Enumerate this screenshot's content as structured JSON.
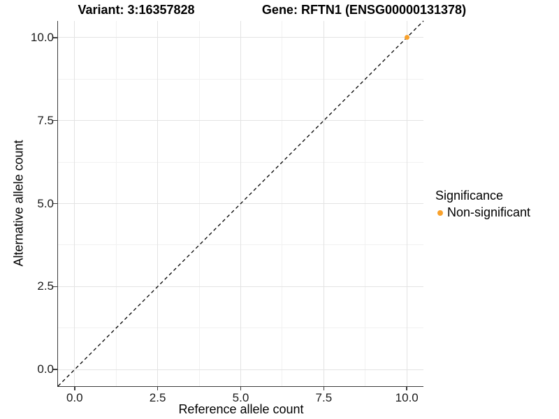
{
  "figure": {
    "title_left": "Variant: 3:16357828",
    "title_right": "Gene: RFTN1 (ENSG00000131378)"
  },
  "axes": {
    "x_title": "Reference allele count",
    "y_title": "Alternative allele count"
  },
  "legend": {
    "title": "Significance",
    "items": [
      {
        "label": "Non-significant",
        "color": "#F9A12B"
      }
    ]
  },
  "chart_data": {
    "type": "scatter",
    "title": "Variant: 3:16357828   Gene: RFTN1 (ENSG00000131378)",
    "xlabel": "Reference allele count",
    "ylabel": "Alternative allele count",
    "xlim": [
      -0.5,
      10.5
    ],
    "ylim": [
      -0.5,
      10.5
    ],
    "xticks": [
      0.0,
      2.5,
      5.0,
      7.5,
      10.0
    ],
    "xtick_labels": [
      "0.0",
      "2.5",
      "5.0",
      "7.5",
      "10.0"
    ],
    "yticks": [
      0.0,
      2.5,
      5.0,
      7.5,
      10.0
    ],
    "ytick_labels": [
      "0.0",
      "2.5",
      "5.0",
      "7.5",
      "10.0"
    ],
    "x_minor": [
      1.25,
      3.75,
      6.25,
      8.75
    ],
    "y_minor": [
      1.25,
      3.75,
      6.25,
      8.75
    ],
    "grid": true,
    "legend_position": "right",
    "series": [
      {
        "name": "Non-significant",
        "color": "#F9A12B",
        "marker": "circle",
        "marker_size": 7,
        "points": [
          {
            "x": 10,
            "y": 10
          }
        ]
      }
    ],
    "reference_line": {
      "slope": 1,
      "intercept": 0,
      "style": "dashed",
      "color": "#000000"
    }
  },
  "colors": {
    "background": "#FFFFFF",
    "axis_line": "#3C3C3C",
    "grid_major": "#E3E3E3",
    "grid_minor": "#F1F1F1",
    "point": "#F9A12B"
  }
}
